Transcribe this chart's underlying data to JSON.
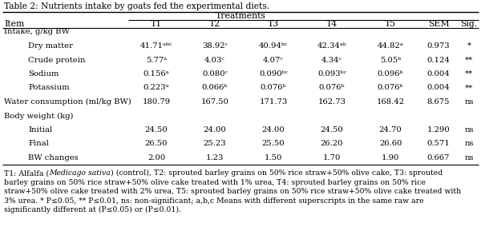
{
  "title": "Table 2: Nutrients intake by goats fed the experimental diets.",
  "treatments_header": "Treatments",
  "col_headers": [
    "Item",
    "T1",
    "T2",
    "T3",
    "T4",
    "T5",
    "SEM",
    "Sig."
  ],
  "rows": [
    {
      "label": "Intake, g/kg BW",
      "indent": 0,
      "is_section": true,
      "values": []
    },
    {
      "label": "Dry matter",
      "indent": 1,
      "is_section": false,
      "values": [
        "41.71ᵃᵇᶜ",
        "38.92ᶜ",
        "40.94ᵇᶜ",
        "42.34ᵃᵇ",
        "44.82ᵃ",
        "0.973",
        "*"
      ]
    },
    {
      "label": "Crude protein",
      "indent": 1,
      "is_section": false,
      "values": [
        "5.77ᵃ",
        "4.03ᶜ",
        "4.07ᶜ",
        "4.34ᶜ",
        "5.05ᵇ",
        "0.124",
        "**"
      ]
    },
    {
      "label": "Sodium",
      "indent": 1,
      "is_section": false,
      "values": [
        "0.156ᵃ",
        "0.080ᶜ",
        "0.090ᵇᶜ",
        "0.093ᵇᶜ",
        "0.096ᵇ",
        "0.004",
        "**"
      ]
    },
    {
      "label": "Potassium",
      "indent": 1,
      "is_section": false,
      "values": [
        "0.223ᵃ",
        "0.066ᵇ",
        "0.076ᵇ",
        "0.076ᵇ",
        "0.076ᵇ",
        "0.004",
        "**"
      ]
    },
    {
      "label": "Water consumption (ml/kg BW)",
      "indent": 0,
      "is_section": false,
      "values": [
        "180.79",
        "167.50",
        "171.73",
        "162.73",
        "168.42",
        "8.675",
        "ns"
      ]
    },
    {
      "label": "Body weight (kg)",
      "indent": 0,
      "is_section": true,
      "values": []
    },
    {
      "label": "Initial",
      "indent": 1,
      "is_section": false,
      "values": [
        "24.50",
        "24.00",
        "24.00",
        "24.50",
        "24.70",
        "1.290",
        "ns"
      ]
    },
    {
      "label": "Final",
      "indent": 1,
      "is_section": false,
      "values": [
        "26.50",
        "25.23",
        "25.50",
        "26.20",
        "26.60",
        "0.571",
        "ns"
      ]
    },
    {
      "label": "BW changes",
      "indent": 1,
      "is_section": false,
      "values": [
        "2.00",
        "1.23",
        "1.50",
        "1.70",
        "1.90",
        "0.667",
        "ns"
      ]
    }
  ],
  "footnote_lines": [
    "T1: Alfalfa (Medicago sativa) (control), T2: sprouted barley grains on 50% rice straw+50% olive cake, T3: sprouted",
    "barley grains on 50% rice straw+50% olive cake treated with 1% urea, T4: sprouted barley grains on 50% rice",
    "straw+50% olive cake treated with 2% urea, T5: sprouted barley grains on 50% rice straw+50% olive cake treated with",
    "3% urea. * P≤0.05, ** P≤0.01, ns: non-significant; a,b,c Means with different superscripts in the same raw are",
    "significantly different at (P≤0.05) or (P≤0.01)."
  ],
  "footnote_italic": "Medicago sativa",
  "bg_color": "#ffffff",
  "text_color": "#000000",
  "font_size": 7.2,
  "header_font_size": 7.8
}
